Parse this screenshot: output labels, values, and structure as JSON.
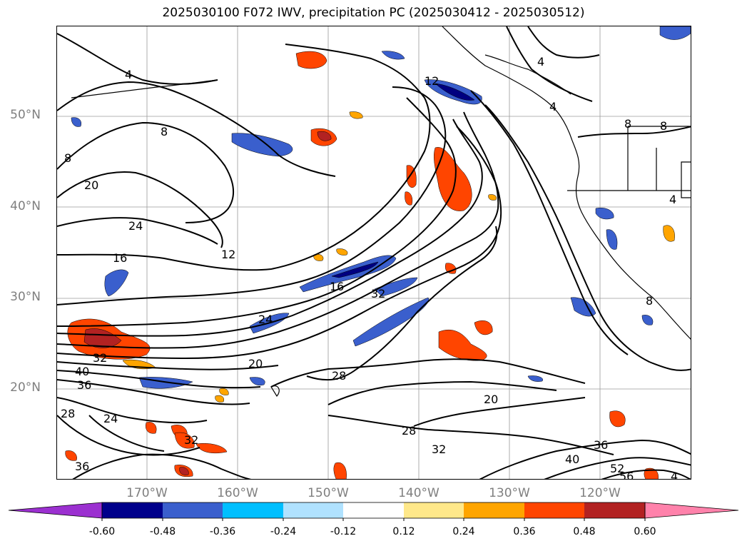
{
  "title": "2025030100 F072 IWV, precipitation PC (2025030412 - 2025030512)",
  "map": {
    "lat_labels": [
      "50°N",
      "40°N",
      "30°N",
      "20°N"
    ],
    "lon_labels": [
      "170°W",
      "160°W",
      "150°W",
      "140°W",
      "130°W",
      "120°W"
    ],
    "contour_labels": [
      "4",
      "8",
      "8",
      "20",
      "24",
      "16",
      "12",
      "16",
      "24",
      "32",
      "40",
      "36",
      "28",
      "24",
      "20",
      "28",
      "20",
      "28",
      "32",
      "32",
      "32",
      "36",
      "40",
      "36",
      "52",
      "56",
      "4",
      "4",
      "4",
      "8",
      "8",
      "8",
      "4",
      "12"
    ],
    "colors": {
      "line": "#000000",
      "pos_light": "#ffe88a",
      "pos_mid": "#ffa500",
      "pos_strong": "#ff4500",
      "pos_extreme": "#b22222",
      "neg_light": "#addfff",
      "neg_mid": "#00bfff",
      "neg_strong": "#3a5fcd",
      "neg_extreme": "#000080"
    }
  },
  "colorbar": {
    "ticks": [
      "-0.60",
      "-0.48",
      "-0.36",
      "-0.24",
      "-0.12",
      "0.12",
      "0.24",
      "0.36",
      "0.48",
      "0.60"
    ],
    "segment_colors": [
      "#9b30d0",
      "#00008b",
      "#3a5fcd",
      "#00bfff",
      "#b0e2ff",
      "#ffffff",
      "#ffe88a",
      "#ffa500",
      "#ff4500",
      "#b22222",
      "#ff82ab"
    ]
  }
}
